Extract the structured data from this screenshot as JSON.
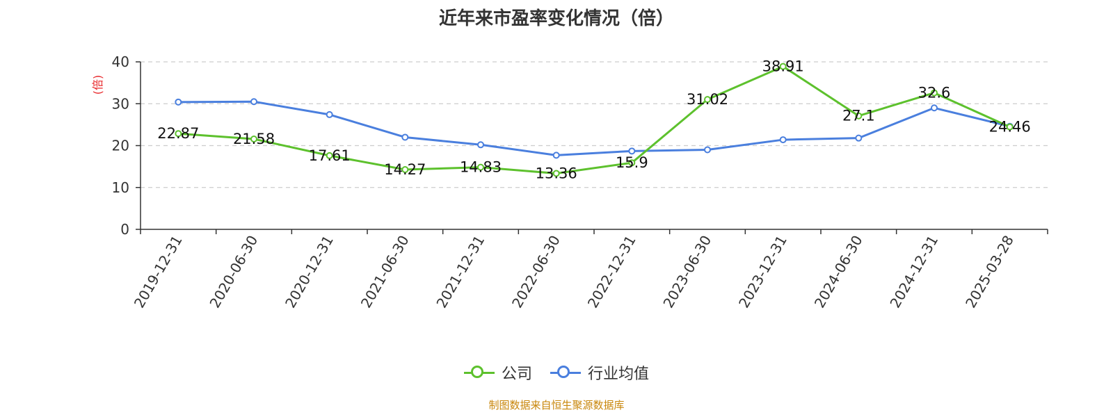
{
  "chart_data": {
    "type": "line",
    "title": "近年来市盈率变化情况（倍）",
    "ylabel": "(倍)",
    "xlabel": "",
    "ylim": [
      0,
      40
    ],
    "yticks": [
      0,
      10,
      20,
      30,
      40
    ],
    "grid": true,
    "legend_position": "bottom",
    "categories": [
      "2019-12-31",
      "2020-06-30",
      "2020-12-31",
      "2021-06-30",
      "2021-12-31",
      "2022-06-30",
      "2022-12-31",
      "2023-06-30",
      "2023-12-31",
      "2024-06-30",
      "2024-12-31",
      "2025-03-28"
    ],
    "series": [
      {
        "name": "公司",
        "color": "#5dc12d",
        "show_labels": true,
        "values": [
          22.87,
          21.58,
          17.61,
          14.27,
          14.83,
          13.36,
          15.9,
          31.02,
          38.91,
          27.1,
          32.6,
          24.46
        ]
      },
      {
        "name": "行业均值",
        "color": "#4a7fde",
        "show_labels": false,
        "values": [
          30.4,
          30.5,
          27.4,
          22.0,
          20.2,
          17.7,
          18.7,
          19.0,
          21.4,
          21.8,
          29.0,
          24.6
        ]
      }
    ]
  },
  "source": "制图数据来自恒生聚源数据库"
}
